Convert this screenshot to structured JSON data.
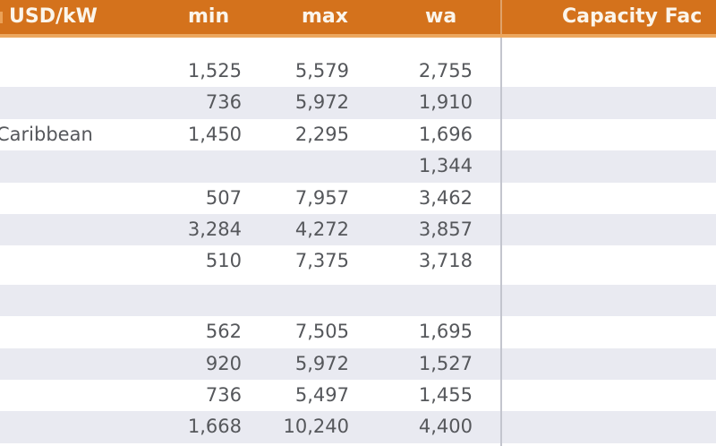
{
  "header": {
    "unit_label": "USD/kW",
    "columns": {
      "min": "min",
      "max": "max",
      "wa": "wa",
      "capacity": "Capacity Fac"
    }
  },
  "table": {
    "rows": [
      {
        "label": "",
        "min": "1,525",
        "max": "5,579",
        "wa": "2,755"
      },
      {
        "label": "",
        "min": "736",
        "max": "5,972",
        "wa": "1,910"
      },
      {
        "label": "Caribbean",
        "min": "1,450",
        "max": "2,295",
        "wa": "1,696"
      },
      {
        "label": "",
        "min": "",
        "max": "",
        "wa": "1,344"
      },
      {
        "label": "",
        "min": "507",
        "max": "7,957",
        "wa": "3,462"
      },
      {
        "label": "",
        "min": "3,284",
        "max": "4,272",
        "wa": "3,857"
      },
      {
        "label": "",
        "min": "510",
        "max": "7,375",
        "wa": "3,718"
      },
      {
        "label": "",
        "min": "",
        "max": "",
        "wa": ""
      },
      {
        "label": "",
        "min": "562",
        "max": "7,505",
        "wa": "1,695"
      },
      {
        "label": "",
        "min": "920",
        "max": "5,972",
        "wa": "1,527"
      },
      {
        "label": "",
        "min": "736",
        "max": "5,497",
        "wa": "1,455"
      },
      {
        "label": "",
        "min": "1,668",
        "max": "10,240",
        "wa": "4,400"
      }
    ]
  },
  "colors": {
    "orange": "#D4721C",
    "band": "#ECA75F",
    "stripe": "#E9EAF1",
    "divider": "#C3C5CE",
    "divider_header": "#DFA26A",
    "text": "#55575B",
    "header_text": "#FBF5EB",
    "unit_text": "#F0AC66"
  }
}
